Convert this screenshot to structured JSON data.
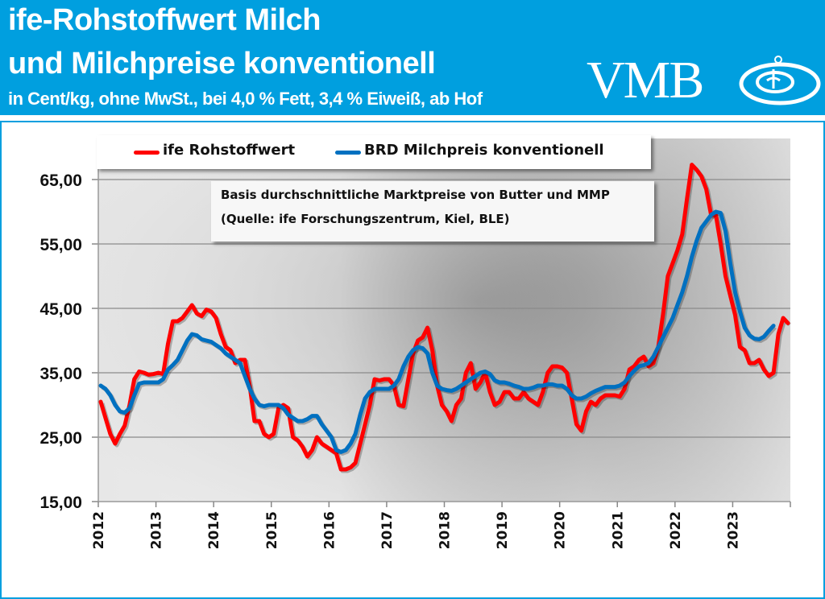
{
  "header": {
    "title_line1": "ife-Rohstoffwert Milch",
    "title_line2": "und Milchpreise konventionell",
    "subtitle": "in Cent/kg, ohne MwSt., bei 4,0 % Fett, 3,4 % Eiweiß, ab Hof",
    "logo_text": "VMB",
    "background_color": "#009fdf"
  },
  "note": {
    "line1": "Basis durchschnittliche Marktpreise von Butter und MMP",
    "line2": "(Quelle: ife Forschungszentrum, Kiel, BLE)"
  },
  "chart_data": {
    "type": "line",
    "x_unit": "monthly, starting January 2012",
    "xlim": [
      "2012-01",
      "2024-01"
    ],
    "ylim": [
      15,
      65
    ],
    "grid": true,
    "legend_position": "top",
    "y_ticks": [
      "15,00",
      "25,00",
      "35,00",
      "45,00",
      "55,00",
      "65,00"
    ],
    "y_tick_values": [
      15,
      25,
      35,
      45,
      55,
      65
    ],
    "x_ticks": [
      "2012",
      "2013",
      "2014",
      "2015",
      "2016",
      "2017",
      "2018",
      "2019",
      "2020",
      "2021",
      "2022",
      "2023"
    ],
    "series": [
      {
        "name": "ife Rohstoffwert",
        "color": "#ff0000",
        "start": "2012-01",
        "values": [
          30.5,
          28,
          25.5,
          24,
          25.5,
          26.8,
          30,
          34,
          35.2,
          35,
          34.7,
          34.8,
          35,
          34.8,
          39.5,
          43,
          43,
          43.5,
          44.5,
          45.5,
          44.2,
          43.8,
          44.8,
          44.5,
          43.5,
          41,
          39,
          38.5,
          36.5,
          37,
          37,
          33,
          27.5,
          27.5,
          25.5,
          25,
          25.5,
          29.5,
          30,
          29.5,
          25,
          24.5,
          23.5,
          22,
          23,
          25,
          24,
          23.5,
          23,
          22.5,
          20,
          20,
          20.3,
          21,
          24,
          27,
          30,
          34,
          33.8,
          34,
          34,
          33,
          30,
          29.8,
          34,
          38,
          40,
          40.5,
          42,
          38.5,
          33,
          30,
          29,
          27.5,
          30,
          31,
          35,
          36.5,
          32.5,
          33.5,
          35,
          32,
          30,
          30.5,
          32,
          32,
          31,
          31,
          32,
          31,
          30.5,
          30,
          32,
          35,
          36,
          36,
          35.8,
          35,
          31,
          27,
          26,
          29,
          30.5,
          30,
          31,
          31.5,
          31.5,
          31.5,
          31.3,
          32.5,
          35.5,
          36,
          37,
          37.5,
          36,
          36.5,
          39,
          44,
          50,
          52,
          54,
          56.5,
          62,
          67.3,
          66.5,
          65.5,
          63.5,
          59.5,
          59.5,
          55,
          50,
          47,
          44,
          39,
          38.5,
          36.5,
          36.5,
          37,
          35.5,
          34.5,
          35,
          41,
          43.5,
          42.7
        ]
      },
      {
        "name": "BRD Milchpreis konventionell",
        "color": "#0070c0",
        "start": "2012-01",
        "values": [
          33,
          32.5,
          31.5,
          30,
          29,
          28.8,
          29.5,
          31.5,
          33.3,
          33.5,
          33.5,
          33.5,
          33.5,
          34,
          35.5,
          36.2,
          37,
          38.5,
          40,
          41,
          40.8,
          40.2,
          40,
          39.8,
          39.3,
          38.8,
          38,
          37.5,
          37,
          36.5,
          34.5,
          32.5,
          31,
          30,
          29.8,
          30,
          30,
          30,
          29.5,
          28.5,
          28,
          27.5,
          27.5,
          27.8,
          28.3,
          28.3,
          27,
          26,
          25,
          23,
          22.7,
          23,
          24,
          25.5,
          28.5,
          31,
          32,
          32.5,
          32.5,
          32.5,
          32.5,
          33,
          34,
          36,
          37.5,
          38.5,
          39,
          38.8,
          38,
          35,
          33,
          32.5,
          32.3,
          32.2,
          32.5,
          33,
          33.5,
          34,
          34.5,
          35,
          35.2,
          34.8,
          33.8,
          33.5,
          33.5,
          33.3,
          33,
          32.8,
          32.5,
          32.5,
          32.7,
          33,
          33,
          33.2,
          33.2,
          33,
          33,
          32.5,
          31.5,
          31,
          31,
          31.3,
          31.8,
          32.2,
          32.5,
          32.8,
          32.8,
          32.8,
          33,
          33.5,
          34.5,
          35.3,
          36,
          36.2,
          36.5,
          37.5,
          39,
          40.5,
          42,
          43.5,
          45.5,
          47.5,
          50,
          53,
          55.5,
          57.5,
          58.5,
          59.5,
          60,
          59.8,
          57,
          52,
          47.5,
          44.5,
          42,
          40.8,
          40.3,
          40.2,
          40.6,
          41.5,
          42.3
        ]
      }
    ]
  }
}
